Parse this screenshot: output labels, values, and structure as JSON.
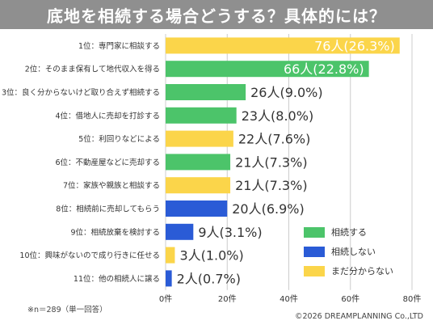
{
  "title": "底地を相続する場合どうする？具体的には？",
  "footnote": "※n＝289（単一回答）",
  "copyright": "©2026 DREAMPLANNING Co.,LTD",
  "colors": {
    "green": "#4cc46a",
    "blue": "#2a5bd6",
    "yellow": "#fbd54a",
    "axis": "#cccccc",
    "title_band": "#8f8f8f"
  },
  "chart_data": {
    "type": "bar",
    "orientation": "horizontal",
    "xlim": [
      0,
      80
    ],
    "ticks": [
      "0件",
      "20件",
      "40件",
      "60件",
      "80件"
    ],
    "tick_values": [
      0,
      20,
      40,
      60,
      80
    ],
    "legend_position": "right",
    "legend": [
      {
        "name": "相続する",
        "color": "#4cc46a"
      },
      {
        "name": "相続しない",
        "color": "#2a5bd6"
      },
      {
        "name": "まだ分からない",
        "color": "#fbd54a"
      }
    ],
    "bars": [
      {
        "label": "1位：専門家に相談する",
        "value": 76,
        "value_label": "76人(26.3%)",
        "group": 2
      },
      {
        "label": "2位：そのまま保有して地代収入を得る",
        "value": 66,
        "value_label": "66人(22.8%)",
        "group": 0
      },
      {
        "label": "3位：良く分からないけど取り合えず相続する",
        "value": 26,
        "value_label": "26人(9.0%)",
        "group": 0
      },
      {
        "label": "4位：借地人に売却を打診する",
        "value": 23,
        "value_label": "23人(8.0%)",
        "group": 0
      },
      {
        "label": "5位：利回りなどによる",
        "value": 22,
        "value_label": "22人(7.6%)",
        "group": 2
      },
      {
        "label": "6位：不動産屋などに売却する",
        "value": 21,
        "value_label": "21人(7.3%)",
        "group": 0
      },
      {
        "label": "7位：家族や親族と相談する",
        "value": 21,
        "value_label": "21人(7.3%)",
        "group": 2
      },
      {
        "label": "8位：相続前に売却してもらう",
        "value": 20,
        "value_label": "20人(6.9%)",
        "group": 1
      },
      {
        "label": "9位：相続放棄を検討する",
        "value": 9,
        "value_label": "9人(3.1%)",
        "group": 1
      },
      {
        "label": "10位：興味がないので成り行きに任せる",
        "value": 3,
        "value_label": "3人(1.0%)",
        "group": 2
      },
      {
        "label": "11位：他の相続人に譲る",
        "value": 2,
        "value_label": "2人(0.7%)",
        "group": 1
      }
    ]
  }
}
